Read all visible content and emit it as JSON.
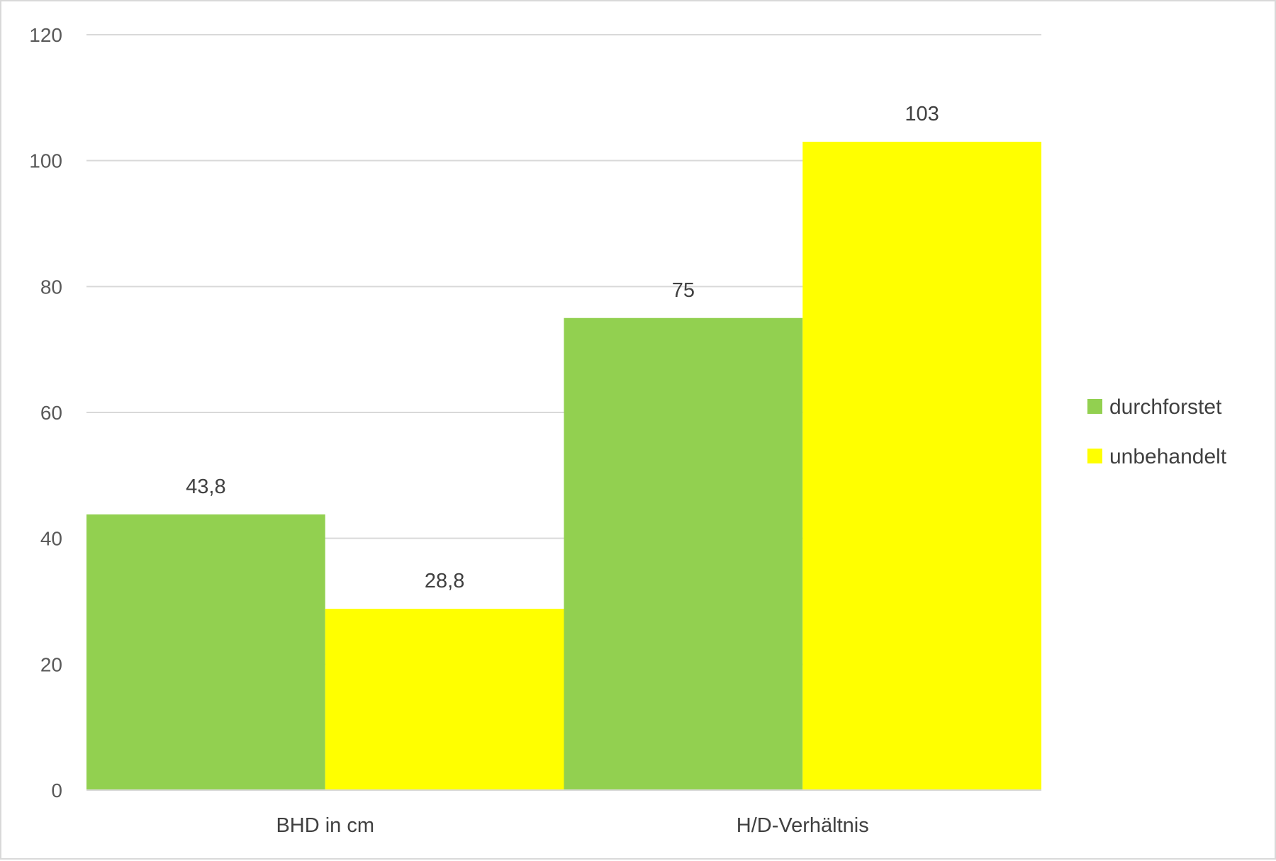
{
  "chart_data": {
    "type": "bar",
    "categories": [
      "BHD in cm",
      "H/D-Verhältnis"
    ],
    "series": [
      {
        "name": "durchforstet",
        "values": [
          43.8,
          75
        ],
        "labels": [
          "43,8",
          "75"
        ],
        "color": "#92d050"
      },
      {
        "name": "unbehandelt",
        "values": [
          28.8,
          103
        ],
        "labels": [
          "28,8",
          "103"
        ],
        "color": "#ffff00"
      }
    ],
    "ylim": [
      0,
      120
    ],
    "yticks": [
      0,
      20,
      40,
      60,
      80,
      100,
      120
    ],
    "grid": true,
    "legend_position": "right"
  }
}
